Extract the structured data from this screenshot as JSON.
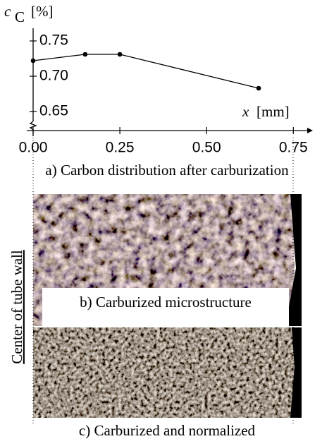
{
  "chart_data": {
    "type": "line",
    "ylabel": "c",
    "ylabel_sub": "C",
    "ylabel_unit": "[%]",
    "xlabel": "x",
    "xlabel_unit": "[mm]",
    "x": [
      0,
      0.15,
      0.25,
      0.65
    ],
    "series": [
      {
        "values": [
          0.722,
          0.731,
          0.731,
          0.683
        ],
        "color": "#000000"
      }
    ],
    "xlim": [
      0,
      0.79
    ],
    "ylim": [
      0.64,
      0.765
    ],
    "xticks": [
      {
        "value": 0,
        "label": "0.00"
      },
      0.25,
      {
        "value": 0.5,
        "label": "0.50"
      },
      0.75
    ],
    "yticks": [
      {
        "value": 0.65,
        "label": "0.65"
      },
      {
        "value": 0.7,
        "label": "0.70"
      },
      0.75
    ]
  },
  "captions": {
    "a": "a) Carbon distribution after carburization",
    "b": "b) Carburized microstructure",
    "c": "c) Carburized and normalized",
    "side": "Center of tube wall"
  }
}
